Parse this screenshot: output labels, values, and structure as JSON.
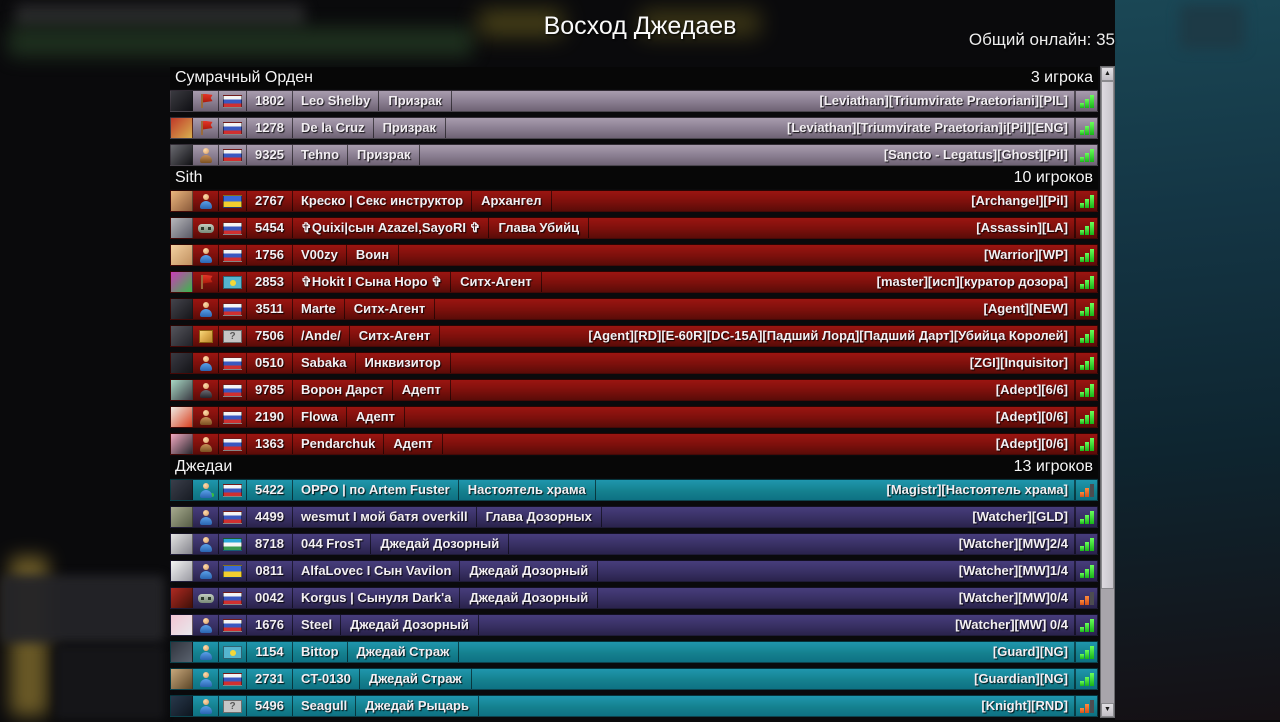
{
  "title": "Восход Джедаев",
  "online_label": "Общий онлайн: 35",
  "scrollbar": {
    "up_glyph": "▲",
    "down_glyph": "▼"
  },
  "colors": {
    "signal_green": "#2be02b",
    "signal_orange": "#e8681e",
    "faction_mauve": "#897d90",
    "faction_red": "#7c100c",
    "faction_teal": "#15818f",
    "faction_purple": "#383063"
  },
  "sections": [
    {
      "name": "Сумрачный Орден",
      "count": "3 игрока",
      "theme": "mauve",
      "players": [
        {
          "avatar": [
            "#3a3a40",
            "#101014"
          ],
          "icon": "flag-red",
          "flag": "ru",
          "id": "1802",
          "name": "Leo Shelby",
          "role": "Призрак",
          "tags": "[Leviathan][Triumvirate Praetoriani][PIL]",
          "signal": "green"
        },
        {
          "avatar": [
            "#c03828",
            "#d8b050"
          ],
          "icon": "flag-red",
          "flag": "ru",
          "id": "1278",
          "name": "De la Cruz",
          "role": "Призрак",
          "tags": "[Leviathan][Triumvirate Praetorian]i[Pil][ENG]",
          "signal": "green"
        },
        {
          "avatar": [
            "#6a6a70",
            "#121216"
          ],
          "icon": "user-brown",
          "flag": "ru",
          "id": "9325",
          "name": "Tehno",
          "role": "Призрак",
          "tags": "[Sancto - Legatus][Ghost][Pil]",
          "signal": "green"
        }
      ]
    },
    {
      "name": "Sith",
      "count": "10 игроков",
      "theme": "red",
      "players": [
        {
          "avatar": [
            "#ecb67e",
            "#8a5a3a"
          ],
          "icon": "user-blue",
          "flag": "ua",
          "id": "2767",
          "name": "Креско | Секс инструктор",
          "role": "Архангел",
          "tags": "[Archangel][Pil]",
          "signal": "green"
        },
        {
          "avatar": [
            "#b8b8bc",
            "#5a5a66"
          ],
          "icon": "gamepad",
          "flag": "ru",
          "id": "5454",
          "name": "✞Quixi|сын Azazel,SayoRI ✞",
          "role": "Глава Убийц",
          "tags": "[Assassin][LA]",
          "signal": "green"
        },
        {
          "avatar": [
            "#f4d0a0",
            "#c09060"
          ],
          "icon": "user-blue",
          "flag": "ru",
          "id": "1756",
          "name": "V00zy",
          "role": "Воин",
          "tags": "[Warrior][WP]",
          "signal": "green"
        },
        {
          "avatar": [
            "#cc3cb8",
            "#3ab84a"
          ],
          "icon": "flag-red",
          "flag": "kz",
          "id": "2853",
          "name": "✞Hokit  I Сына Норо ✞",
          "role": "Ситх-Агент",
          "tags": "[master][исп][куратор дозора]",
          "signal": "green"
        },
        {
          "avatar": [
            "#44444c",
            "#16161a"
          ],
          "icon": "user-blue",
          "flag": "ru",
          "id": "3511",
          "name": "Marte",
          "role": "Ситх-Агент",
          "tags": "[Agent][NEW]",
          "signal": "green"
        },
        {
          "avatar": [
            "#55555c",
            "#222228"
          ],
          "icon": "box",
          "flag": "unknown",
          "id": "7506",
          "name": "/Ande/",
          "role": "Ситх-Агент",
          "tags": "[Agent][RD][E-60R][DC-15A][Падший Лорд][Падший Дарт][Убийца Королей]",
          "signal": "green"
        },
        {
          "avatar": [
            "#3a3a42",
            "#141418"
          ],
          "icon": "user-blue",
          "flag": "ru",
          "id": "0510",
          "name": "Sabaka",
          "role": "Инквизитор",
          "tags": "[ZGI][Inquisitor]",
          "signal": "green"
        },
        {
          "avatar": [
            "#a8d8c4",
            "#3c3c44"
          ],
          "icon": "user-dark",
          "flag": "ru",
          "id": "9785",
          "name": "Ворон Дарст",
          "role": "Адепт",
          "tags": "[Adept][6/6]",
          "signal": "green"
        },
        {
          "avatar": [
            "#f0ece4",
            "#d84020"
          ],
          "icon": "user-brown",
          "flag": "ru",
          "id": "2190",
          "name": "Flowa",
          "role": "Адепт",
          "tags": "[Adept][0/6]",
          "signal": "green"
        },
        {
          "avatar": [
            "#f2a8c0",
            "#2a2a30"
          ],
          "icon": "user-brown",
          "flag": "ru",
          "id": "1363",
          "name": "Pendarchuk",
          "role": "Адепт",
          "tags": "[Adept][0/6]",
          "signal": "green"
        }
      ]
    },
    {
      "name": "Джедаи",
      "count": "13 игроков",
      "theme": "teal",
      "players": [
        {
          "theme": "teal",
          "avatar": [
            "#3a3e4a",
            "#181c24"
          ],
          "icon": "user-green-plus",
          "flag": "ru",
          "id": "5422",
          "name": "OPPO | по Artem Fuster",
          "role": "Настоятель храма",
          "tags": "[Magistr][Настоятель храма]",
          "signal": "orange"
        },
        {
          "theme": "purple",
          "avatar": [
            "#a8ac90",
            "#565c46"
          ],
          "icon": "user-blue",
          "flag": "ru",
          "id": "4499",
          "name": "wesmut I мой батя overkill",
          "role": "Глава Дозорных",
          "tags": "[Watcher][GLD]",
          "signal": "green"
        },
        {
          "theme": "purple",
          "avatar": [
            "#e4e4e4",
            "#84848c"
          ],
          "icon": "user-blue",
          "flag": "uz",
          "id": "8718",
          "name": "044 FrosT",
          "role": "Джедай Дозорный",
          "tags": "[Watcher][MW]2/4",
          "signal": "green"
        },
        {
          "theme": "purple",
          "avatar": [
            "#f4f4f4",
            "#9a9aa2"
          ],
          "icon": "user-blue",
          "flag": "ua",
          "id": "0811",
          "name": "AlfaLovec I Сын Vavilon",
          "role": "Джедай Дозорный",
          "tags": "[Watcher][MW]1/4",
          "signal": "green"
        },
        {
          "theme": "purple",
          "avatar": [
            "#b02a22",
            "#401008"
          ],
          "icon": "gamepad",
          "flag": "ru",
          "id": "0042",
          "name": "Korgus | Сынуля Dark'a",
          "role": "Джедай Дозорный",
          "tags": "[Watcher][MW]0/4",
          "signal": "orange"
        },
        {
          "theme": "purple",
          "avatar": [
            "#f2c4d2",
            "#e8e8ec"
          ],
          "icon": "user-blue",
          "flag": "ru",
          "id": "1676",
          "name": "Steel",
          "role": "Джедай Дозорный",
          "tags": "[Watcher][MW] 0/4",
          "signal": "green"
        },
        {
          "theme": "teal",
          "avatar": [
            "#30343e",
            "#5a626e"
          ],
          "icon": "user-blue",
          "flag": "kz",
          "id": "1154",
          "name": "Bittop",
          "role": "Джедай Страж",
          "tags": "[Guard][NG]",
          "signal": "green"
        },
        {
          "theme": "teal",
          "avatar": [
            "#c8a87c",
            "#5c4628"
          ],
          "icon": "user-blue",
          "flag": "ru",
          "id": "2731",
          "name": "CT-0130",
          "role": "Джедай Страж",
          "tags": "[Guardian][NG]",
          "signal": "green"
        },
        {
          "theme": "teal",
          "avatar": [
            "#28384a",
            "#0e1620"
          ],
          "icon": "user-blue",
          "flag": "unknown",
          "id": "5496",
          "name": "Seagull",
          "role": "Джедай Рыцарь",
          "tags": "[Knight][RND]",
          "signal": "orange"
        }
      ]
    }
  ]
}
